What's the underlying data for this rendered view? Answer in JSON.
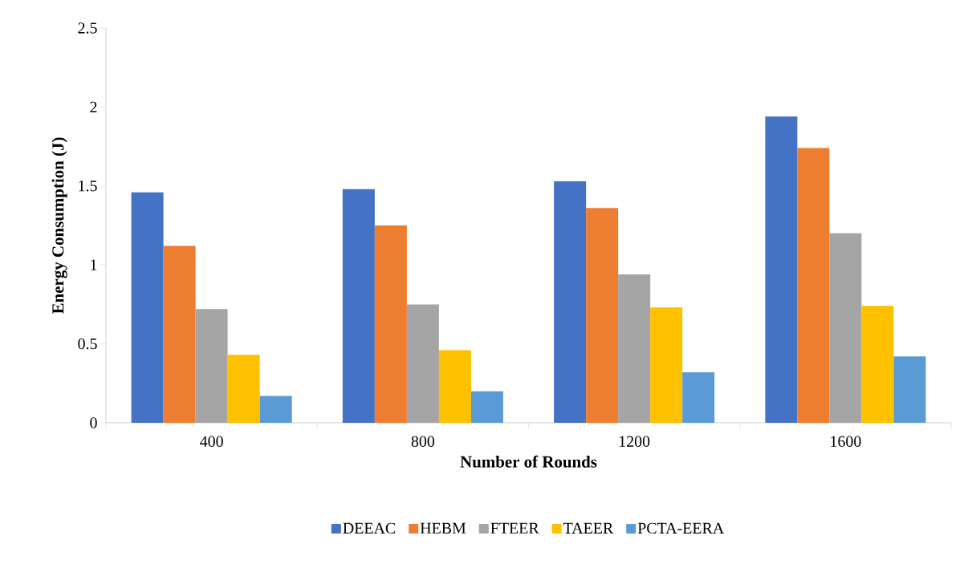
{
  "chart_data": {
    "type": "bar",
    "xlabel": "Number of Rounds",
    "ylabel": "Energy Consumption (J)",
    "categories": [
      "400",
      "800",
      "1200",
      "1600"
    ],
    "series": [
      {
        "name": "DEEAC",
        "color": "#4472c4",
        "values": [
          1.46,
          1.48,
          1.53,
          1.94
        ]
      },
      {
        "name": "HEBM",
        "color": "#ed7d31",
        "values": [
          1.12,
          1.25,
          1.36,
          1.74
        ]
      },
      {
        "name": "FTEER",
        "color": "#a5a5a5",
        "values": [
          0.72,
          0.75,
          0.94,
          1.2
        ]
      },
      {
        "name": "TAEER",
        "color": "#ffc000",
        "values": [
          0.43,
          0.46,
          0.73,
          0.74
        ]
      },
      {
        "name": "PCTA-EERA",
        "color": "#5b9bd5",
        "values": [
          0.17,
          0.2,
          0.32,
          0.42
        ]
      }
    ],
    "ylim": [
      0,
      2.5
    ],
    "yticks": [
      0,
      0.5,
      1,
      1.5,
      2,
      2.5
    ],
    "legend": "bottom"
  }
}
